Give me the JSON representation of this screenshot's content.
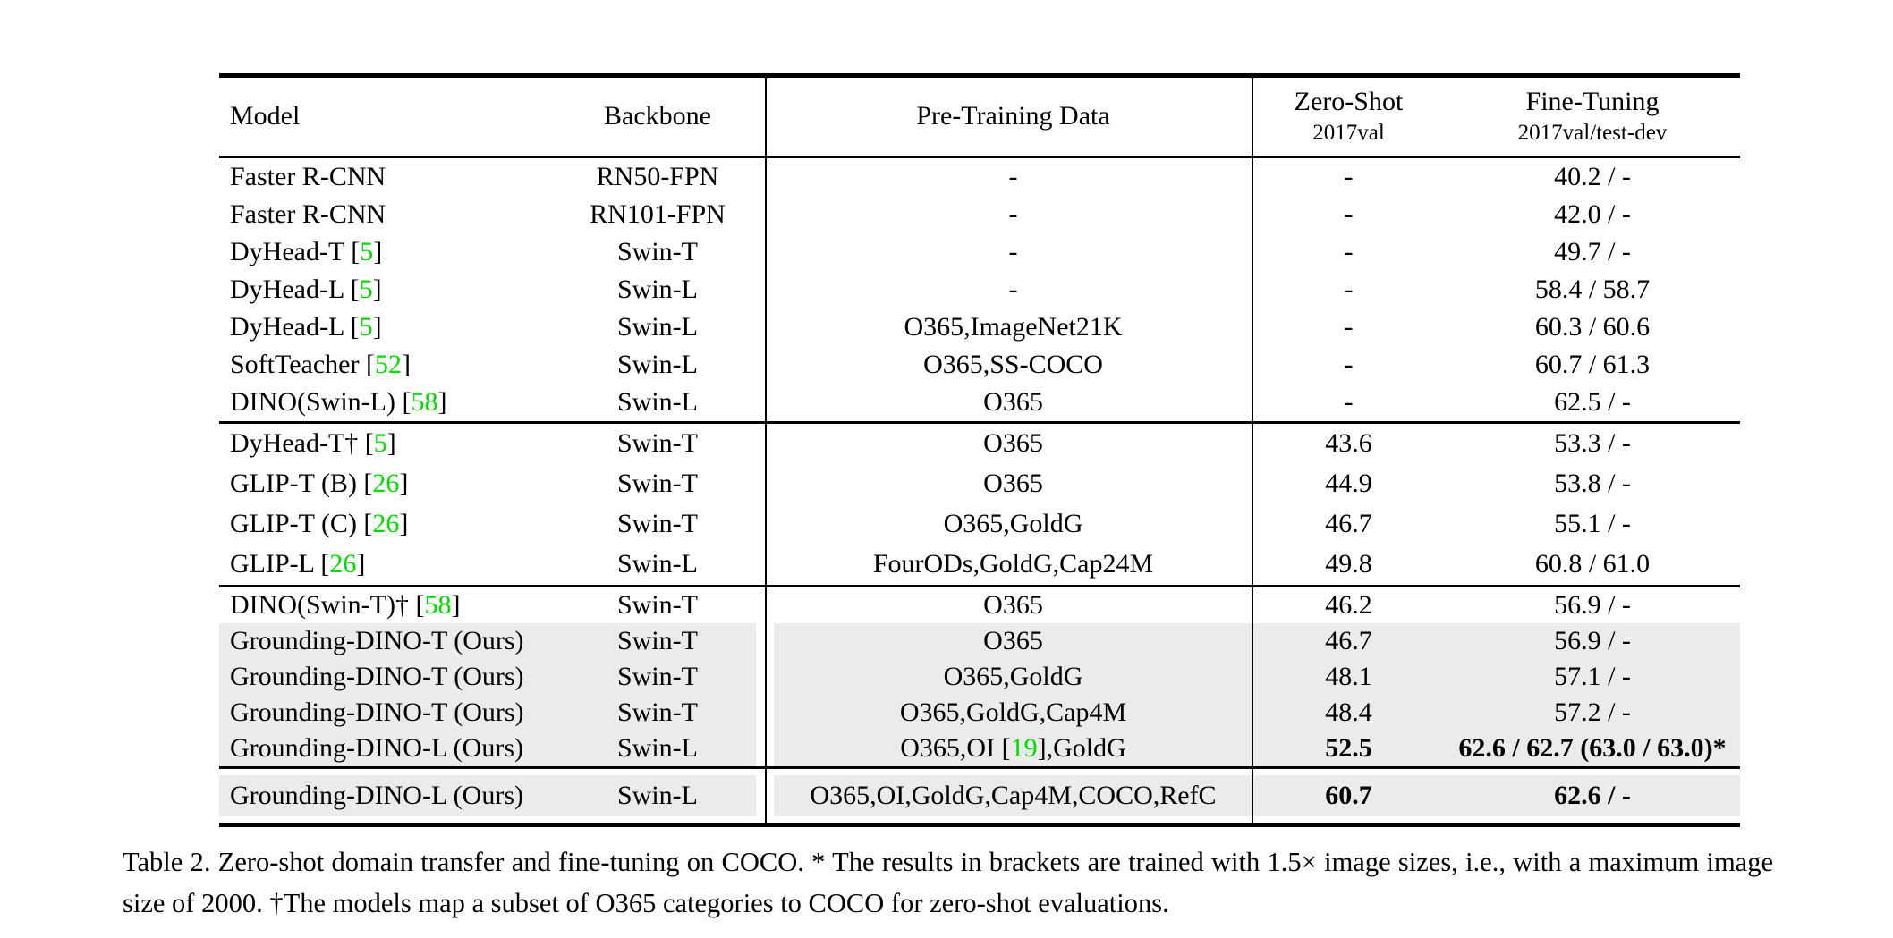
{
  "colors": {
    "citation_green": "#00dd00",
    "row_highlight": "#ebebeb",
    "text": "#000000"
  },
  "table": {
    "header": {
      "model": "Model",
      "backbone": "Backbone",
      "pretraining": "Pre-Training Data",
      "zeroshot_title": "Zero-Shot",
      "zeroshot_sub": "2017val",
      "finetuning_title": "Fine-Tuning",
      "finetuning_sub": "2017val/test-dev"
    },
    "groups": [
      {
        "rows": [
          {
            "model": "Faster R-CNN",
            "backbone": "RN50-FPN",
            "pretraining": "-",
            "zeroshot": "-",
            "finetuning": "40.2 / -",
            "highlight": false,
            "bold": false
          },
          {
            "model": "Faster R-CNN",
            "backbone": "RN101-FPN",
            "pretraining": "-",
            "zeroshot": "-",
            "finetuning": "42.0 / -",
            "highlight": false,
            "bold": false
          },
          {
            "model": "DyHead-T [5]",
            "backbone": "Swin-T",
            "pretraining": "-",
            "zeroshot": "-",
            "finetuning": "49.7 / -",
            "highlight": false,
            "bold": false
          },
          {
            "model": "DyHead-L [5]",
            "backbone": "Swin-L",
            "pretraining": "-",
            "zeroshot": "-",
            "finetuning": "58.4 / 58.7",
            "highlight": false,
            "bold": false
          },
          {
            "model": "DyHead-L [5]",
            "backbone": "Swin-L",
            "pretraining": "O365,ImageNet21K",
            "zeroshot": "-",
            "finetuning": "60.3 / 60.6",
            "highlight": false,
            "bold": false
          },
          {
            "model": "SoftTeacher [52]",
            "backbone": "Swin-L",
            "pretraining": "O365,SS-COCO",
            "zeroshot": "-",
            "finetuning": "60.7 / 61.3",
            "highlight": false,
            "bold": false
          },
          {
            "model": "DINO(Swin-L) [58]",
            "backbone": "Swin-L",
            "pretraining": "O365",
            "zeroshot": "-",
            "finetuning": "62.5 / -",
            "highlight": false,
            "bold": false
          }
        ]
      },
      {
        "rows": [
          {
            "model": "DyHead-T† [5]",
            "backbone": "Swin-T",
            "pretraining": "O365",
            "zeroshot": "43.6",
            "finetuning": "53.3 / -",
            "highlight": false,
            "bold": false
          },
          {
            "model": "GLIP-T (B) [26]",
            "backbone": "Swin-T",
            "pretraining": "O365",
            "zeroshot": "44.9",
            "finetuning": "53.8 / -",
            "highlight": false,
            "bold": false
          },
          {
            "model": "GLIP-T (C) [26]",
            "backbone": "Swin-T",
            "pretraining": "O365,GoldG",
            "zeroshot": "46.7",
            "finetuning": "55.1 / -",
            "highlight": false,
            "bold": false
          },
          {
            "model": "GLIP-L [26]",
            "backbone": "Swin-L",
            "pretraining": "FourODs,GoldG,Cap24M",
            "zeroshot": "49.8",
            "finetuning": "60.8 / 61.0",
            "highlight": false,
            "bold": false
          }
        ]
      },
      {
        "rows": [
          {
            "model": "DINO(Swin-T)† [58]",
            "backbone": "Swin-T",
            "pretraining": "O365",
            "zeroshot": "46.2",
            "finetuning": "56.9 / -",
            "highlight": false,
            "bold": false
          },
          {
            "model": "Grounding-DINO-T (Ours)",
            "backbone": "Swin-T",
            "pretraining": "O365",
            "zeroshot": "46.7",
            "finetuning": "56.9 / -",
            "highlight": true,
            "bold": false
          },
          {
            "model": "Grounding-DINO-T (Ours)",
            "backbone": "Swin-T",
            "pretraining": "O365,GoldG",
            "zeroshot": "48.1",
            "finetuning": "57.1 / -",
            "highlight": true,
            "bold": false
          },
          {
            "model": "Grounding-DINO-T (Ours)",
            "backbone": "Swin-T",
            "pretraining": "O365,GoldG,Cap4M",
            "zeroshot": "48.4",
            "finetuning": "57.2 / -",
            "highlight": true,
            "bold": false
          },
          {
            "model": "Grounding-DINO-L (Ours)",
            "backbone": "Swin-L",
            "pretraining": "O365,OI [19],GoldG",
            "zeroshot": "52.5",
            "finetuning": "62.6 / 62.7 (63.0 / 63.0)*",
            "highlight": true,
            "bold": true
          }
        ]
      },
      {
        "rows": [
          {
            "model": "Grounding-DINO-L (Ours)",
            "backbone": "Swin-L",
            "pretraining": "O365,OI,GoldG,Cap4M,COCO,RefC",
            "zeroshot": "60.7",
            "finetuning": "62.6 / -",
            "highlight": true,
            "bold": true
          }
        ]
      }
    ]
  },
  "caption": {
    "text": "Table 2.  Zero-shot domain transfer and fine-tuning on COCO. * The results in brackets are trained with 1.5× image sizes, i.e., with a maximum image size of 2000. †The models map a subset of O365 categories to COCO for zero-shot evaluations."
  }
}
